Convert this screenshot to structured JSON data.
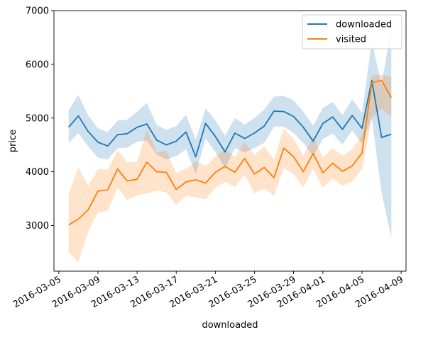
{
  "chart_data": {
    "type": "line",
    "title": "",
    "xlabel": "downloaded",
    "ylabel": "price",
    "ylim": [
      2150,
      7000
    ],
    "yticks": [
      3000,
      4000,
      5000,
      6000,
      7000
    ],
    "xlim": [
      "2016-03-04 12:00",
      "2016-04-09 12:00"
    ],
    "xticks": [
      "2016-03-05",
      "2016-03-09",
      "2016-03-13",
      "2016-03-17",
      "2016-03-21",
      "2016-03-25",
      "2016-03-29",
      "2016-04-01",
      "2016-04-05",
      "2016-04-09"
    ],
    "legend_position": "top-right",
    "dates": [
      "2016-03-06",
      "2016-03-07",
      "2016-03-08",
      "2016-03-09",
      "2016-03-10",
      "2016-03-11",
      "2016-03-12",
      "2016-03-13",
      "2016-03-14",
      "2016-03-15",
      "2016-03-16",
      "2016-03-17",
      "2016-03-18",
      "2016-03-19",
      "2016-03-20",
      "2016-03-21",
      "2016-03-22",
      "2016-03-23",
      "2016-03-24",
      "2016-03-25",
      "2016-03-26",
      "2016-03-27",
      "2016-03-28",
      "2016-03-29",
      "2016-03-30",
      "2016-03-31",
      "2016-04-01",
      "2016-04-02",
      "2016-04-03",
      "2016-04-04",
      "2016-04-05",
      "2016-04-06",
      "2016-04-07",
      "2016-04-08"
    ],
    "series": [
      {
        "name": "downloaded",
        "color": "#1f77b4",
        "values": [
          4830,
          5040,
          4750,
          4550,
          4480,
          4690,
          4710,
          4830,
          4890,
          4590,
          4500,
          4570,
          4740,
          4280,
          4900,
          4660,
          4370,
          4720,
          4620,
          4720,
          4850,
          5130,
          5120,
          5030,
          4830,
          4570,
          4900,
          5020,
          4790,
          5050,
          4810,
          5700,
          4640,
          4700
        ],
        "ci_low": [
          4530,
          4720,
          4470,
          4260,
          4230,
          4440,
          4450,
          4560,
          4580,
          4320,
          4230,
          4290,
          4420,
          3960,
          4620,
          4370,
          4070,
          4440,
          4360,
          4440,
          4540,
          4840,
          4840,
          4720,
          4540,
          4290,
          4610,
          4710,
          4510,
          4770,
          4520,
          5000,
          3600,
          2780
        ],
        "ci_high": [
          5140,
          5430,
          5050,
          4810,
          4740,
          4950,
          4970,
          5120,
          5280,
          4870,
          4780,
          4850,
          5060,
          4600,
          5180,
          4960,
          4670,
          5000,
          4880,
          5000,
          5160,
          5400,
          5410,
          5330,
          5120,
          4860,
          5190,
          5300,
          5060,
          5350,
          5100,
          6420,
          5620,
          6700
        ]
      },
      {
        "name": "visited",
        "color": "#ff7f0e",
        "values": [
          3010,
          3120,
          3290,
          3640,
          3660,
          4050,
          3830,
          3860,
          4180,
          4000,
          3990,
          3670,
          3810,
          3850,
          3790,
          3990,
          4100,
          3990,
          4250,
          3960,
          4080,
          3890,
          4440,
          4280,
          4000,
          4340,
          3980,
          4160,
          4010,
          4110,
          4350,
          5660,
          5700,
          5380
        ],
        "ci_low": [
          2500,
          2320,
          2880,
          3240,
          3270,
          3700,
          3480,
          3560,
          3600,
          3650,
          3620,
          3380,
          3560,
          3520,
          3490,
          3700,
          3810,
          3720,
          3940,
          3600,
          3690,
          3550,
          4070,
          3960,
          3710,
          4050,
          3700,
          3880,
          3740,
          3820,
          4050,
          5000,
          5180,
          5020
        ],
        "ci_high": [
          3580,
          4080,
          3730,
          4050,
          4040,
          4400,
          4180,
          4180,
          4790,
          4360,
          4390,
          3970,
          4060,
          4190,
          4100,
          4290,
          4410,
          4280,
          4560,
          4310,
          4480,
          4230,
          4810,
          4610,
          4300,
          4650,
          4270,
          4440,
          4300,
          4420,
          4690,
          5790,
          5810,
          5760
        ]
      }
    ]
  }
}
